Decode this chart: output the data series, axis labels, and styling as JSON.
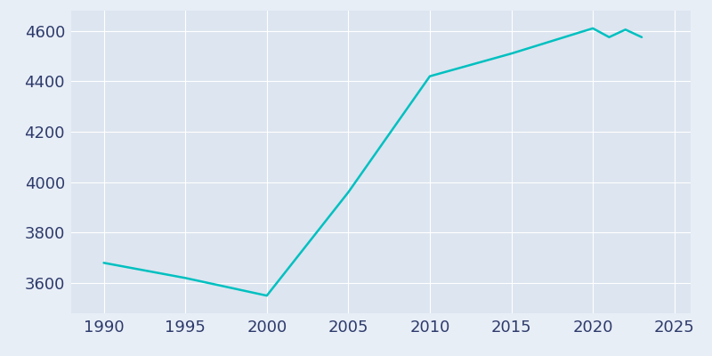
{
  "years": [
    1990,
    1995,
    2000,
    2005,
    2010,
    2015,
    2020,
    2021,
    2022,
    2023
  ],
  "population": [
    3680,
    3620,
    3550,
    3960,
    4420,
    4510,
    4610,
    4575,
    4605,
    4575
  ],
  "line_color": "#00C0C0",
  "line_width": 1.8,
  "bg_color": "#E8EEF6",
  "plot_bg_color": "#DDE5F0",
  "grid_color": "#FFFFFF",
  "tick_color": "#2D3A6B",
  "xlim": [
    1988,
    2026
  ],
  "ylim": [
    3480,
    4680
  ],
  "xticks": [
    1990,
    1995,
    2000,
    2005,
    2010,
    2015,
    2020,
    2025
  ],
  "yticks": [
    3600,
    3800,
    4000,
    4200,
    4400,
    4600
  ],
  "tick_fontsize": 13
}
